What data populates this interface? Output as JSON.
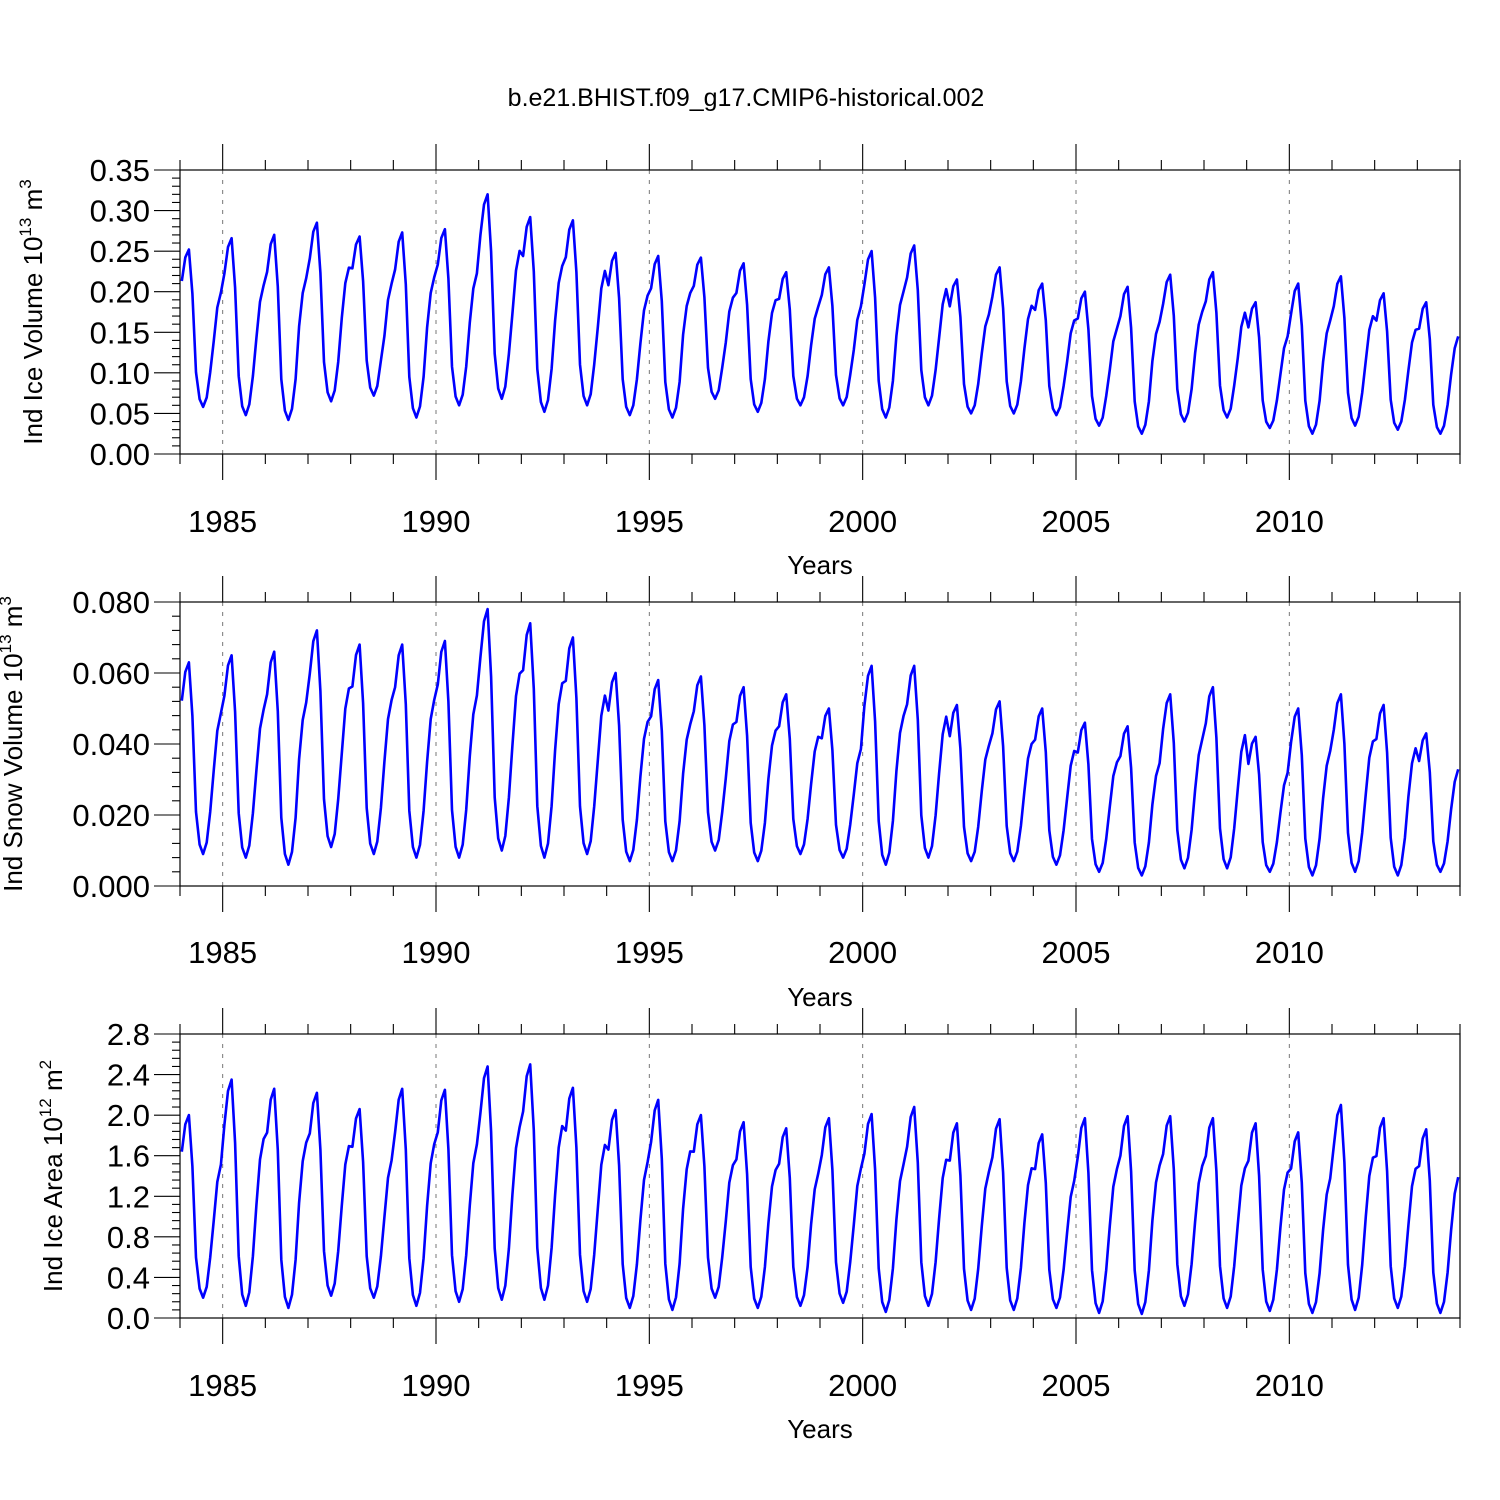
{
  "figure": {
    "title": "b.e21.BHIST.f09_g17.CMIP6-historical.002"
  },
  "chart_data": [
    {
      "type": "line",
      "ylabel_main": "Ind Ice Volume 10",
      "ylabel_exp": "13",
      "ylabel_unit": " m",
      "ylabel_unit_exp": "3",
      "xlabel": "Years",
      "xlim": [
        1984,
        2014
      ],
      "ylim": [
        0,
        0.35
      ],
      "yticks": [
        0.0,
        0.05,
        0.1,
        0.15,
        0.2,
        0.25,
        0.3,
        0.35
      ],
      "ytick_labels": [
        "0.00",
        "0.05",
        "0.10",
        "0.15",
        "0.20",
        "0.25",
        "0.30",
        "0.35"
      ],
      "xticks": [
        1985,
        1990,
        1995,
        2000,
        2005,
        2010
      ],
      "xtick_labels": [
        "1985",
        "1990",
        "1995",
        "2000",
        "2005",
        "2010"
      ],
      "grid": "dashed verticals at major x ticks",
      "color": "#0000ff",
      "annual_peaks": [
        0.252,
        0.266,
        0.27,
        0.285,
        0.268,
        0.273,
        0.277,
        0.32,
        0.292,
        0.288,
        0.248,
        0.244,
        0.242,
        0.235,
        0.224,
        0.23,
        0.25,
        0.257,
        0.215,
        0.23,
        0.21,
        0.2,
        0.206,
        0.221,
        0.224,
        0.187,
        0.21,
        0.219,
        0.198,
        0.187
      ],
      "annual_minima": [
        0.058,
        0.048,
        0.042,
        0.065,
        0.072,
        0.045,
        0.06,
        0.068,
        0.052,
        0.06,
        0.048,
        0.045,
        0.068,
        0.052,
        0.06,
        0.06,
        0.045,
        0.06,
        0.05,
        0.05,
        0.048,
        0.035,
        0.025,
        0.04,
        0.045,
        0.032,
        0.025,
        0.035,
        0.03,
        0.025
      ]
    },
    {
      "type": "line",
      "ylabel_main": "Ind Snow Volume 10",
      "ylabel_exp": "13",
      "ylabel_unit": " m",
      "ylabel_unit_exp": "3",
      "xlabel": "Years",
      "xlim": [
        1984,
        2014
      ],
      "ylim": [
        0,
        0.08
      ],
      "yticks": [
        0.0,
        0.02,
        0.04,
        0.06,
        0.08
      ],
      "ytick_labels": [
        "0.000",
        "0.020",
        "0.040",
        "0.060",
        "0.080"
      ],
      "xticks": [
        1985,
        1990,
        1995,
        2000,
        2005,
        2010
      ],
      "xtick_labels": [
        "1985",
        "1990",
        "1995",
        "2000",
        "2005",
        "2010"
      ],
      "grid": "dashed verticals at major x ticks",
      "color": "#0000ff",
      "annual_peaks": [
        0.063,
        0.065,
        0.066,
        0.072,
        0.068,
        0.068,
        0.069,
        0.078,
        0.074,
        0.07,
        0.06,
        0.058,
        0.059,
        0.056,
        0.054,
        0.05,
        0.062,
        0.062,
        0.051,
        0.052,
        0.05,
        0.046,
        0.045,
        0.054,
        0.056,
        0.042,
        0.05,
        0.054,
        0.051,
        0.043
      ],
      "annual_minima": [
        0.009,
        0.008,
        0.006,
        0.011,
        0.009,
        0.008,
        0.008,
        0.01,
        0.008,
        0.009,
        0.007,
        0.007,
        0.01,
        0.007,
        0.009,
        0.008,
        0.006,
        0.008,
        0.007,
        0.007,
        0.006,
        0.004,
        0.003,
        0.005,
        0.005,
        0.004,
        0.003,
        0.004,
        0.003,
        0.004
      ]
    },
    {
      "type": "line",
      "ylabel_main": "Ind Ice Area 10",
      "ylabel_exp": "12",
      "ylabel_unit": " m",
      "ylabel_unit_exp": "2",
      "xlabel": "Years",
      "xlim": [
        1984,
        2014
      ],
      "ylim": [
        0,
        2.8
      ],
      "yticks": [
        0.0,
        0.4,
        0.8,
        1.2,
        1.6,
        2.0,
        2.4,
        2.8
      ],
      "ytick_labels": [
        "0.0",
        "0.4",
        "0.8",
        "1.2",
        "1.6",
        "2.0",
        "2.4",
        "2.8"
      ],
      "xticks": [
        1985,
        1990,
        1995,
        2000,
        2005,
        2010
      ],
      "xtick_labels": [
        "1985",
        "1990",
        "1995",
        "2000",
        "2005",
        "2010"
      ],
      "grid": "dashed verticals at major x ticks",
      "color": "#0000ff",
      "annual_peaks": [
        2.0,
        2.35,
        2.26,
        2.22,
        2.06,
        2.26,
        2.25,
        2.48,
        2.5,
        2.27,
        2.05,
        2.15,
        2.0,
        1.93,
        1.87,
        1.97,
        2.01,
        2.08,
        1.92,
        1.96,
        1.81,
        1.97,
        1.99,
        1.99,
        1.97,
        1.92,
        1.83,
        2.1,
        1.97,
        1.86
      ],
      "annual_minima": [
        0.2,
        0.12,
        0.1,
        0.22,
        0.2,
        0.12,
        0.16,
        0.18,
        0.18,
        0.16,
        0.1,
        0.08,
        0.2,
        0.1,
        0.12,
        0.15,
        0.06,
        0.12,
        0.08,
        0.08,
        0.1,
        0.05,
        0.04,
        0.12,
        0.1,
        0.07,
        0.05,
        0.08,
        0.1,
        0.05
      ]
    }
  ]
}
